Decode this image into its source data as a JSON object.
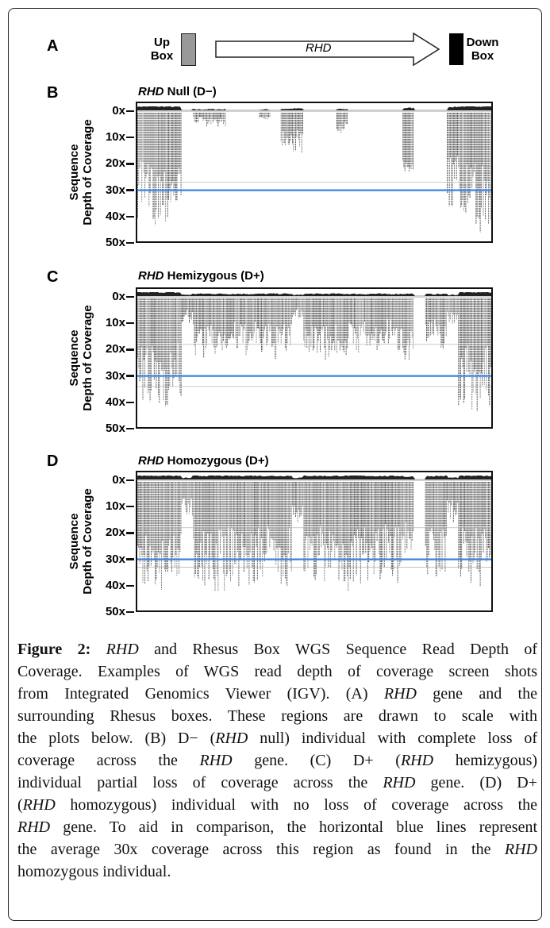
{
  "panel_a": {
    "label": "A",
    "up_box": [
      "Up",
      "Box"
    ],
    "gene": "RHD",
    "down_box": [
      "Down",
      "Box"
    ],
    "colors": {
      "up_box": "#999999",
      "down_box": "#000000"
    }
  },
  "chart_data": [
    {
      "type": "bar",
      "label": "B",
      "title_gene": "RHD",
      "title_rest": " Null (D−)",
      "ylabel": [
        "Sequence",
        "Depth of Coverage"
      ],
      "yticks": [
        "0x",
        "10x",
        "20x",
        "30x",
        "40x",
        "50x"
      ],
      "ylim": [
        0,
        50
      ],
      "reference_line": 30,
      "reference_color": "#3b82e0",
      "binned_depth": [
        33,
        33,
        32,
        30,
        0,
        3,
        4,
        4,
        0,
        0,
        0,
        2,
        0,
        10,
        12,
        0,
        0,
        0,
        6,
        0,
        0,
        0,
        0,
        0,
        18,
        0,
        0,
        0,
        28,
        33,
        35,
        35
      ]
    },
    {
      "type": "bar",
      "label": "C",
      "title_gene": "RHD",
      "title_rest": " Hemizygous (D+)",
      "ylabel": [
        "Sequence",
        "Depth of Coverage"
      ],
      "yticks": [
        "0x",
        "10x",
        "20x",
        "30x",
        "40x",
        "50x"
      ],
      "ylim": [
        0,
        50
      ],
      "reference_line": 30,
      "reference_color": "#3b82e0",
      "binned_depth": [
        33,
        33,
        32,
        30,
        8,
        17,
        18,
        17,
        16,
        17,
        16,
        17,
        18,
        17,
        6,
        17,
        16,
        18,
        17,
        16,
        15,
        17,
        14,
        16,
        18,
        0,
        14,
        15,
        8,
        32,
        33,
        33
      ]
    },
    {
      "type": "bar",
      "label": "D",
      "title_gene": "RHD",
      "title_rest": " Homozygous (D+)",
      "ylabel": [
        "Sequence",
        "Depth of Coverage"
      ],
      "yticks": [
        "0x",
        "10x",
        "20x",
        "30x",
        "40x",
        "50x"
      ],
      "ylim": [
        0,
        50
      ],
      "reference_line": 30,
      "reference_color": "#3b82e0",
      "binned_depth": [
        33,
        32,
        33,
        30,
        10,
        30,
        31,
        32,
        30,
        31,
        32,
        30,
        29,
        31,
        12,
        31,
        30,
        29,
        31,
        32,
        30,
        29,
        28,
        30,
        22,
        0,
        28,
        29,
        12,
        30,
        31,
        31
      ]
    }
  ],
  "caption": {
    "lines": [
      [
        {
          "t": "Figure 2: ",
          "b": true
        },
        {
          "t": "RHD",
          "i": true
        },
        {
          "t": " and Rhesus Box WGS Sequence Read Depth of"
        }
      ],
      [
        {
          "t": "Coverage. Examples of WGS read depth of coverage screen shots"
        }
      ],
      [
        {
          "t": "from Integrated Genomics Viewer (IGV). (A) "
        },
        {
          "t": "RHD",
          "i": true
        },
        {
          "t": " gene and the"
        }
      ],
      [
        {
          "t": "surrounding Rhesus boxes. These regions are drawn to scale with"
        }
      ],
      [
        {
          "t": "the plots below. (B) D− ("
        },
        {
          "t": "RHD",
          "i": true
        },
        {
          "t": " null) individual with complete loss of"
        }
      ],
      [
        {
          "t": "coverage across the "
        },
        {
          "t": "RHD",
          "i": true
        },
        {
          "t": " gene. (C) D+ ("
        },
        {
          "t": "RHD",
          "i": true
        },
        {
          "t": " hemizygous)"
        }
      ],
      [
        {
          "t": "individual partial loss of coverage across the "
        },
        {
          "t": "RHD",
          "i": true
        },
        {
          "t": " gene. (D) D+"
        }
      ],
      [
        {
          "t": "("
        },
        {
          "t": "RHD",
          "i": true
        },
        {
          "t": " homozygous) individual with no loss of coverage across the"
        }
      ],
      [
        {
          "t": "RHD",
          "i": true
        },
        {
          "t": " gene. To aid in comparison, the horizontal blue lines represent"
        }
      ],
      [
        {
          "t": "the average 30x coverage across this region as found in the "
        },
        {
          "t": "RHD",
          "i": true
        }
      ],
      [
        {
          "t": "homozygous individual."
        }
      ]
    ]
  }
}
